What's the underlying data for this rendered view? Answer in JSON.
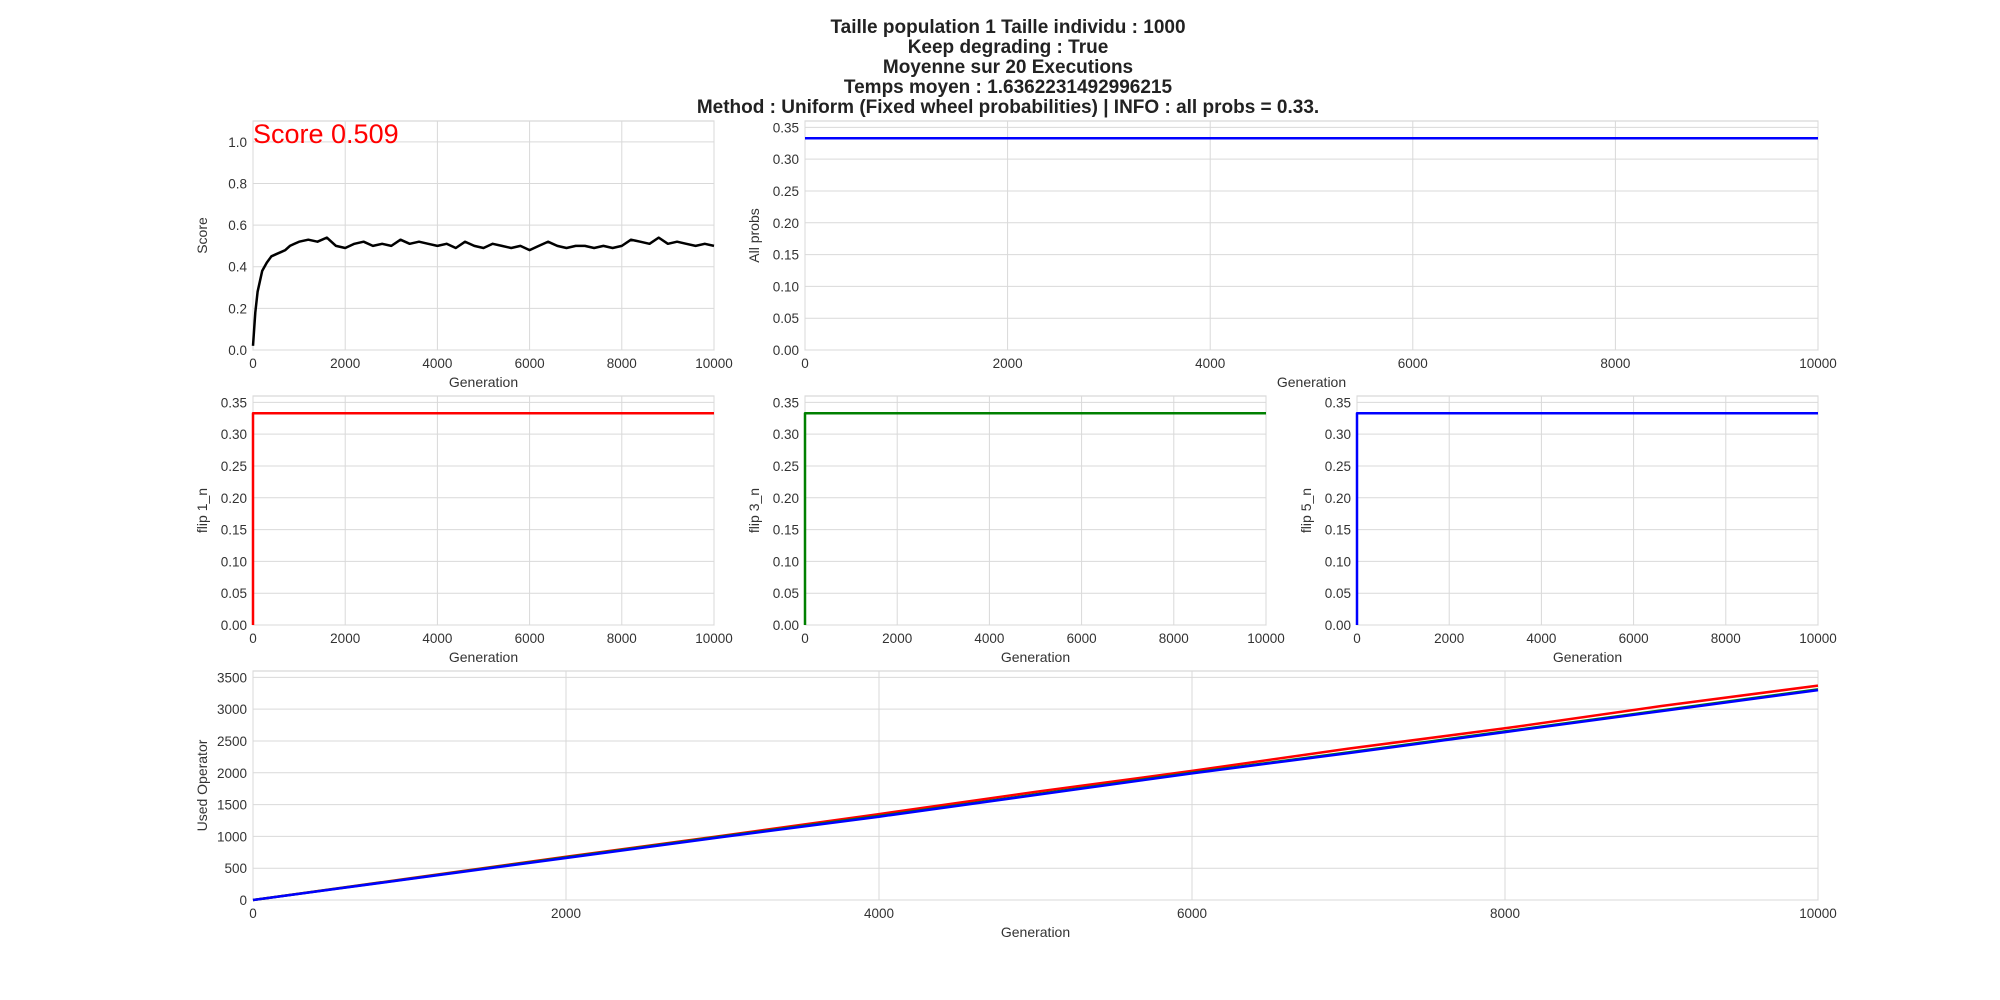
{
  "title_lines": [
    "Taille population  1 Taille individu : 1000",
    "Keep degrading : True",
    "Moyenne sur 20 Executions",
    "Temps moyen : 1.6362231492996215",
    "Method : Uniform (Fixed wheel probabilities) | INFO : all probs = 0.33."
  ],
  "score_annotation": "Score 0.509",
  "colors": {
    "score": "#000000",
    "flip1": "#ff0000",
    "flip3": "#008000",
    "flip5": "#0000ff",
    "annotation": "#ff0000",
    "grid": "#d9d9d9"
  },
  "chart_data": [
    {
      "id": "score",
      "type": "line",
      "xlabel": "Generation",
      "ylabel": "Score",
      "xlim": [
        0,
        10000
      ],
      "ylim": [
        0,
        1.1
      ],
      "xticks": [
        0,
        2000,
        4000,
        6000,
        8000,
        10000
      ],
      "yticks": [
        0.0,
        0.2,
        0.4,
        0.6,
        0.8,
        1.0
      ],
      "ytick_labels": [
        "0.0",
        "0.2",
        "0.4",
        "0.6",
        "0.8",
        "1.0"
      ],
      "grid": true,
      "series": [
        {
          "color": "#000000",
          "x": [
            0,
            50,
            100,
            200,
            300,
            400,
            500,
            600,
            700,
            800,
            900,
            1000,
            1200,
            1400,
            1600,
            1800,
            2000,
            2200,
            2400,
            2600,
            2800,
            3000,
            3200,
            3400,
            3600,
            3800,
            4000,
            4200,
            4400,
            4600,
            4800,
            5000,
            5200,
            5400,
            5600,
            5800,
            6000,
            6200,
            6400,
            6600,
            6800,
            7000,
            7200,
            7400,
            7600,
            7800,
            8000,
            8200,
            8400,
            8600,
            8800,
            9000,
            9200,
            9400,
            9600,
            9800,
            10000
          ],
          "y": [
            0.02,
            0.18,
            0.28,
            0.38,
            0.42,
            0.45,
            0.46,
            0.47,
            0.48,
            0.5,
            0.51,
            0.52,
            0.53,
            0.52,
            0.54,
            0.5,
            0.49,
            0.51,
            0.52,
            0.5,
            0.51,
            0.5,
            0.53,
            0.51,
            0.52,
            0.51,
            0.5,
            0.51,
            0.49,
            0.52,
            0.5,
            0.49,
            0.51,
            0.5,
            0.49,
            0.5,
            0.48,
            0.5,
            0.52,
            0.5,
            0.49,
            0.5,
            0.5,
            0.49,
            0.5,
            0.49,
            0.5,
            0.53,
            0.52,
            0.51,
            0.54,
            0.51,
            0.52,
            0.51,
            0.5,
            0.51,
            0.5
          ]
        }
      ]
    },
    {
      "id": "allprobs",
      "type": "line",
      "xlabel": "Generation",
      "ylabel": "All probs",
      "xlim": [
        0,
        10000
      ],
      "ylim": [
        0,
        0.36
      ],
      "xticks": [
        0,
        2000,
        4000,
        6000,
        8000,
        10000
      ],
      "yticks": [
        0.0,
        0.05,
        0.1,
        0.15,
        0.2,
        0.25,
        0.3,
        0.35
      ],
      "ytick_labels": [
        "0.00",
        "0.05",
        "0.10",
        "0.15",
        "0.20",
        "0.25",
        "0.30",
        "0.35"
      ],
      "grid": true,
      "series": [
        {
          "color": "#ff0000",
          "x": [
            0,
            10000
          ],
          "y": [
            0.333,
            0.333
          ]
        },
        {
          "color": "#008000",
          "x": [
            0,
            10000
          ],
          "y": [
            0.333,
            0.333
          ]
        },
        {
          "color": "#0000ff",
          "x": [
            0,
            10000
          ],
          "y": [
            0.333,
            0.333
          ]
        }
      ]
    },
    {
      "id": "flip1",
      "type": "line",
      "xlabel": "Generation",
      "ylabel": "flip 1_n",
      "xlim": [
        0,
        10000
      ],
      "ylim": [
        0,
        0.36
      ],
      "xticks": [
        0,
        2000,
        4000,
        6000,
        8000,
        10000
      ],
      "yticks": [
        0.0,
        0.05,
        0.1,
        0.15,
        0.2,
        0.25,
        0.3,
        0.35
      ],
      "ytick_labels": [
        "0.00",
        "0.05",
        "0.10",
        "0.15",
        "0.20",
        "0.25",
        "0.30",
        "0.35"
      ],
      "grid": true,
      "series": [
        {
          "color": "#ff0000",
          "x": [
            0,
            0,
            10000
          ],
          "y": [
            0.0,
            0.333,
            0.333
          ]
        }
      ]
    },
    {
      "id": "flip3",
      "type": "line",
      "xlabel": "Generation",
      "ylabel": "flip 3_n",
      "xlim": [
        0,
        10000
      ],
      "ylim": [
        0,
        0.36
      ],
      "xticks": [
        0,
        2000,
        4000,
        6000,
        8000,
        10000
      ],
      "yticks": [
        0.0,
        0.05,
        0.1,
        0.15,
        0.2,
        0.25,
        0.3,
        0.35
      ],
      "ytick_labels": [
        "0.00",
        "0.05",
        "0.10",
        "0.15",
        "0.20",
        "0.25",
        "0.30",
        "0.35"
      ],
      "grid": true,
      "series": [
        {
          "color": "#008000",
          "x": [
            0,
            0,
            10000
          ],
          "y": [
            0.0,
            0.333,
            0.333
          ]
        }
      ]
    },
    {
      "id": "flip5",
      "type": "line",
      "xlabel": "Generation",
      "ylabel": "flip 5_n",
      "xlim": [
        0,
        10000
      ],
      "ylim": [
        0,
        0.36
      ],
      "xticks": [
        0,
        2000,
        4000,
        6000,
        8000,
        10000
      ],
      "yticks": [
        0.0,
        0.05,
        0.1,
        0.15,
        0.2,
        0.25,
        0.3,
        0.35
      ],
      "ytick_labels": [
        "0.00",
        "0.05",
        "0.10",
        "0.15",
        "0.20",
        "0.25",
        "0.30",
        "0.35"
      ],
      "grid": true,
      "series": [
        {
          "color": "#0000ff",
          "x": [
            0,
            0,
            10000
          ],
          "y": [
            0.0,
            0.333,
            0.333
          ]
        }
      ]
    },
    {
      "id": "used",
      "type": "line",
      "xlabel": "Generation",
      "ylabel": "Used Operator",
      "xlim": [
        0,
        10000
      ],
      "ylim": [
        0,
        3600
      ],
      "xticks": [
        0,
        2000,
        4000,
        6000,
        8000,
        10000
      ],
      "yticks": [
        0,
        500,
        1000,
        1500,
        2000,
        2500,
        3000,
        3500
      ],
      "ytick_labels": [
        "0",
        "500",
        "1000",
        "1500",
        "2000",
        "2500",
        "3000",
        "3500"
      ],
      "grid": true,
      "series": [
        {
          "color": "#ff0000",
          "x": [
            0,
            1000,
            2000,
            3000,
            4000,
            5000,
            6000,
            7000,
            8000,
            9000,
            10000
          ],
          "y": [
            0,
            340,
            680,
            1010,
            1350,
            1700,
            2030,
            2380,
            2700,
            3050,
            3370
          ]
        },
        {
          "color": "#008000",
          "x": [
            0,
            1000,
            2000,
            3000,
            4000,
            5000,
            6000,
            7000,
            8000,
            9000,
            10000
          ],
          "y": [
            0,
            335,
            670,
            1000,
            1320,
            1660,
            2000,
            2320,
            2650,
            2980,
            3310
          ]
        },
        {
          "color": "#0000ff",
          "x": [
            0,
            1000,
            2000,
            3000,
            4000,
            5000,
            6000,
            7000,
            8000,
            9000,
            10000
          ],
          "y": [
            0,
            330,
            660,
            990,
            1310,
            1650,
            1990,
            2310,
            2640,
            2970,
            3300
          ]
        }
      ]
    }
  ]
}
